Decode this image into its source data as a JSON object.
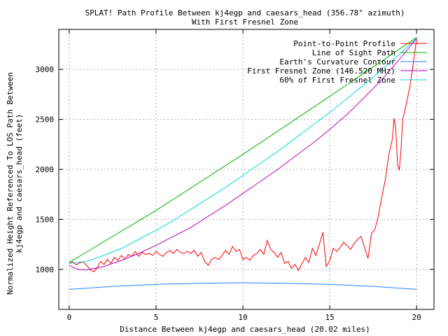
{
  "chart_data": {
    "type": "line",
    "title": "SPLAT! Path Profile Between kj4egp and caesars_head (356.78° azimuth)",
    "subtitle": "With First Fresnel Zone",
    "xlabel": "Distance Between kj4egp and caesars_head (20.02 miles)",
    "ylabel_line1": "Normalized Height Referenced To LOS Path Between",
    "ylabel_line2": "kj4egp and caesars_head (feet)",
    "xlim": [
      -0.6,
      21.0
    ],
    "ylim": [
      600,
      3400
    ],
    "xticks": [
      "0",
      "5",
      "10",
      "15",
      "20"
    ],
    "xtick_values": [
      0,
      5,
      10,
      15,
      20
    ],
    "yticks": [
      "1000",
      "1500",
      "2000",
      "2500",
      "3000"
    ],
    "ytick_values": [
      1000,
      1500,
      2000,
      2500,
      3000
    ],
    "grid": true,
    "legend_position": "top-right",
    "series": [
      {
        "name": "Point-to-Point Profile",
        "color": "#ff0000",
        "points": [
          [
            0,
            1060
          ],
          [
            0.2,
            1075
          ],
          [
            0.4,
            1045
          ],
          [
            0.6,
            1065
          ],
          [
            0.8,
            1075
          ],
          [
            1.0,
            1040
          ],
          [
            1.2,
            1000
          ],
          [
            1.4,
            975
          ],
          [
            1.6,
            1010
          ],
          [
            1.8,
            1080
          ],
          [
            2.0,
            1050
          ],
          [
            2.2,
            1100
          ],
          [
            2.4,
            1060
          ],
          [
            2.6,
            1120
          ],
          [
            2.8,
            1090
          ],
          [
            3.0,
            1140
          ],
          [
            3.2,
            1100
          ],
          [
            3.4,
            1150
          ],
          [
            3.6,
            1130
          ],
          [
            3.8,
            1180
          ],
          [
            4.0,
            1130
          ],
          [
            4.2,
            1170
          ],
          [
            4.4,
            1150
          ],
          [
            4.6,
            1160
          ],
          [
            4.8,
            1140
          ],
          [
            5.0,
            1180
          ],
          [
            5.2,
            1150
          ],
          [
            5.4,
            1130
          ],
          [
            5.6,
            1170
          ],
          [
            5.8,
            1190
          ],
          [
            6.0,
            1160
          ],
          [
            6.2,
            1200
          ],
          [
            6.4,
            1170
          ],
          [
            6.6,
            1160
          ],
          [
            6.8,
            1180
          ],
          [
            7.0,
            1160
          ],
          [
            7.2,
            1190
          ],
          [
            7.4,
            1130
          ],
          [
            7.6,
            1170
          ],
          [
            7.8,
            1080
          ],
          [
            8.0,
            1040
          ],
          [
            8.2,
            1100
          ],
          [
            8.4,
            1120
          ],
          [
            8.6,
            1100
          ],
          [
            8.8,
            1140
          ],
          [
            9.0,
            1190
          ],
          [
            9.2,
            1150
          ],
          [
            9.4,
            1230
          ],
          [
            9.6,
            1180
          ],
          [
            9.8,
            1200
          ],
          [
            10.0,
            1100
          ],
          [
            10.2,
            1120
          ],
          [
            10.4,
            1090
          ],
          [
            10.6,
            1140
          ],
          [
            10.8,
            1160
          ],
          [
            11.0,
            1200
          ],
          [
            11.2,
            1150
          ],
          [
            11.4,
            1290
          ],
          [
            11.6,
            1200
          ],
          [
            11.8,
            1170
          ],
          [
            12.0,
            1120
          ],
          [
            12.2,
            1170
          ],
          [
            12.4,
            1060
          ],
          [
            12.6,
            1080
          ],
          [
            12.8,
            1010
          ],
          [
            13.0,
            1050
          ],
          [
            13.2,
            990
          ],
          [
            13.4,
            1060
          ],
          [
            13.6,
            1120
          ],
          [
            13.8,
            1070
          ],
          [
            14.0,
            1210
          ],
          [
            14.2,
            1140
          ],
          [
            14.4,
            1250
          ],
          [
            14.6,
            1370
          ],
          [
            14.8,
            1030
          ],
          [
            15.0,
            1090
          ],
          [
            15.2,
            1210
          ],
          [
            15.4,
            1180
          ],
          [
            15.6,
            1220
          ],
          [
            15.8,
            1270
          ],
          [
            16.0,
            1240
          ],
          [
            16.2,
            1200
          ],
          [
            16.4,
            1260
          ],
          [
            16.6,
            1300
          ],
          [
            16.8,
            1330
          ],
          [
            17.0,
            1220
          ],
          [
            17.2,
            1110
          ],
          [
            17.4,
            1360
          ],
          [
            17.6,
            1400
          ],
          [
            17.8,
            1540
          ],
          [
            18.0,
            1730
          ],
          [
            18.2,
            1900
          ],
          [
            18.4,
            2150
          ],
          [
            18.6,
            2300
          ],
          [
            18.7,
            2510
          ],
          [
            18.8,
            2400
          ],
          [
            18.9,
            2050
          ],
          [
            19.0,
            1990
          ],
          [
            19.1,
            2200
          ],
          [
            19.2,
            2500
          ],
          [
            19.4,
            2650
          ],
          [
            19.6,
            2820
          ],
          [
            19.8,
            3050
          ],
          [
            20.0,
            3310
          ]
        ]
      },
      {
        "name": "Line of Sight Path",
        "color": "#00b000",
        "points": [
          [
            0,
            1070
          ],
          [
            5,
            1590
          ],
          [
            10,
            2150
          ],
          [
            15,
            2730
          ],
          [
            20.0,
            3320
          ]
        ]
      },
      {
        "name": "Earth's Curvature Contour",
        "color": "#2080ff",
        "points": [
          [
            0,
            800
          ],
          [
            2.5,
            830
          ],
          [
            5,
            850
          ],
          [
            7.5,
            862
          ],
          [
            10,
            866
          ],
          [
            12.5,
            862
          ],
          [
            15,
            850
          ],
          [
            17.5,
            830
          ],
          [
            20.0,
            800
          ]
        ]
      },
      {
        "name": "First Fresnel Zone (146.520 MHz)",
        "color": "#c000c0",
        "points": [
          [
            0,
            1040
          ],
          [
            0.5,
            1000
          ],
          [
            1,
            995
          ],
          [
            2,
            1030
          ],
          [
            3,
            1090
          ],
          [
            4,
            1160
          ],
          [
            5,
            1240
          ],
          [
            6,
            1330
          ],
          [
            7,
            1420
          ],
          [
            8,
            1530
          ],
          [
            9,
            1640
          ],
          [
            10,
            1760
          ],
          [
            11,
            1880
          ],
          [
            12,
            2000
          ],
          [
            13,
            2130
          ],
          [
            14,
            2260
          ],
          [
            15,
            2400
          ],
          [
            16,
            2550
          ],
          [
            17,
            2720
          ],
          [
            18,
            2900
          ],
          [
            19,
            3100
          ],
          [
            20.0,
            3310
          ]
        ]
      },
      {
        "name": "60% of First Fresnel Zone",
        "color": "#00d8e0",
        "points": [
          [
            0,
            1060
          ],
          [
            1,
            1080
          ],
          [
            2,
            1140
          ],
          [
            3,
            1210
          ],
          [
            4,
            1300
          ],
          [
            5,
            1390
          ],
          [
            6,
            1490
          ],
          [
            7,
            1600
          ],
          [
            8,
            1710
          ],
          [
            9,
            1820
          ],
          [
            10,
            1940
          ],
          [
            11,
            2060
          ],
          [
            12,
            2180
          ],
          [
            13,
            2310
          ],
          [
            14,
            2440
          ],
          [
            15,
            2570
          ],
          [
            16,
            2710
          ],
          [
            17,
            2850
          ],
          [
            18,
            3000
          ],
          [
            19,
            3150
          ],
          [
            20.0,
            3315
          ]
        ]
      }
    ]
  }
}
